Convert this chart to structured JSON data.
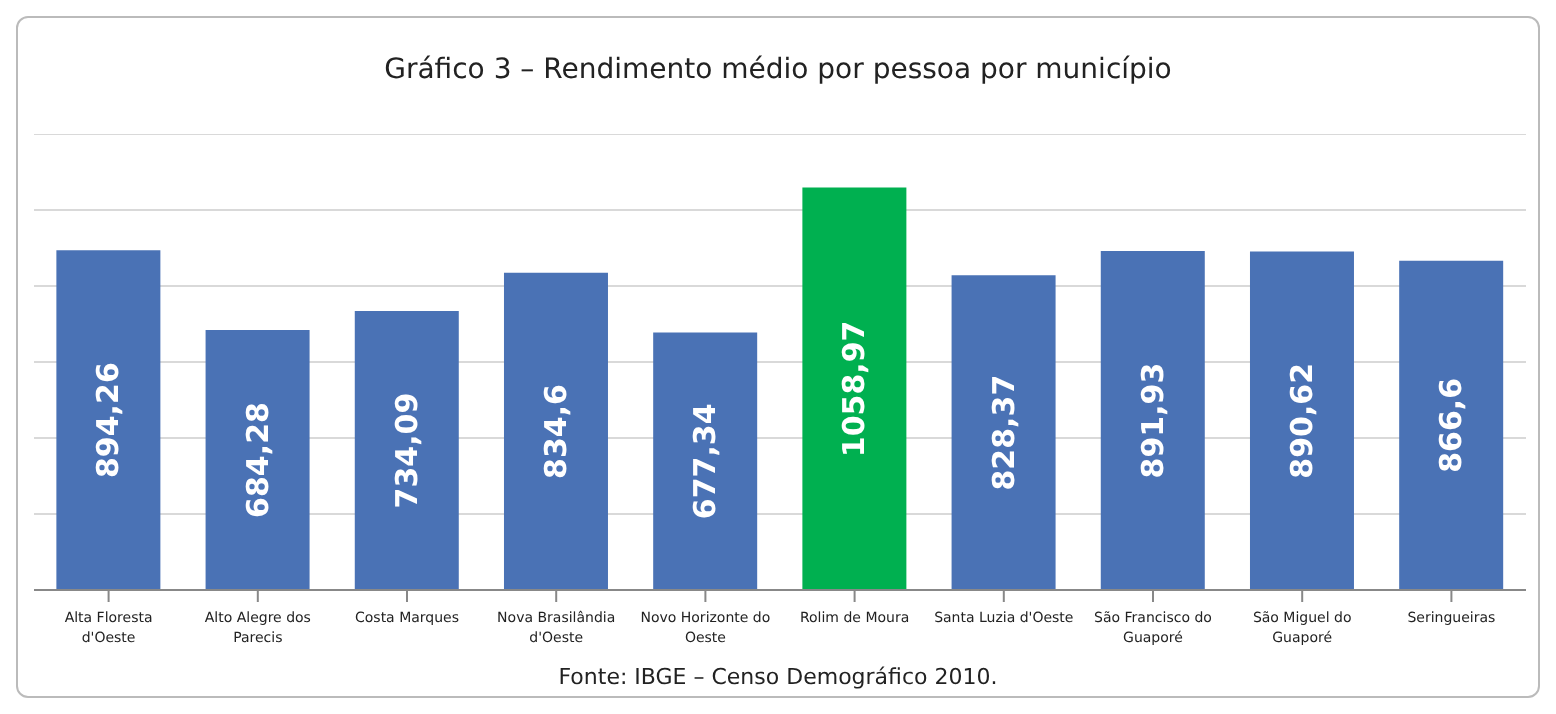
{
  "chart_data": {
    "type": "bar",
    "title": "Gráfico 3 – Rendimento médio por pessoa por município",
    "categories": [
      "Alta Floresta d'Oeste",
      "Alto Alegre dos Parecis",
      "Costa Marques",
      "Nova Brasilândia d'Oeste",
      "Novo Horizonte do Oeste",
      "Rolim de Moura",
      "Santa Luzia d'Oeste",
      "São Francisco do Guaporé",
      "São Miguel do Guaporé",
      "Seringueiras"
    ],
    "values": [
      894.26,
      684.28,
      734.09,
      834.6,
      677.34,
      1058.97,
      828.37,
      891.93,
      890.62,
      866.6
    ],
    "value_labels": [
      "894,26",
      "684,28",
      "734,09",
      "834,6",
      "677,34",
      "1058,97",
      "828,37",
      "891,93",
      "890,62",
      "866,6"
    ],
    "colors": [
      "#4a72b5",
      "#4a72b5",
      "#4a72b5",
      "#4a72b5",
      "#4a72b5",
      "#00b050",
      "#4a72b5",
      "#4a72b5",
      "#4a72b5",
      "#4a72b5"
    ],
    "tick_labels": "x",
    "grid": "y",
    "legend": false,
    "annotations": [
      "Fonte: IBGE – Censo Demográfico 2010."
    ]
  }
}
